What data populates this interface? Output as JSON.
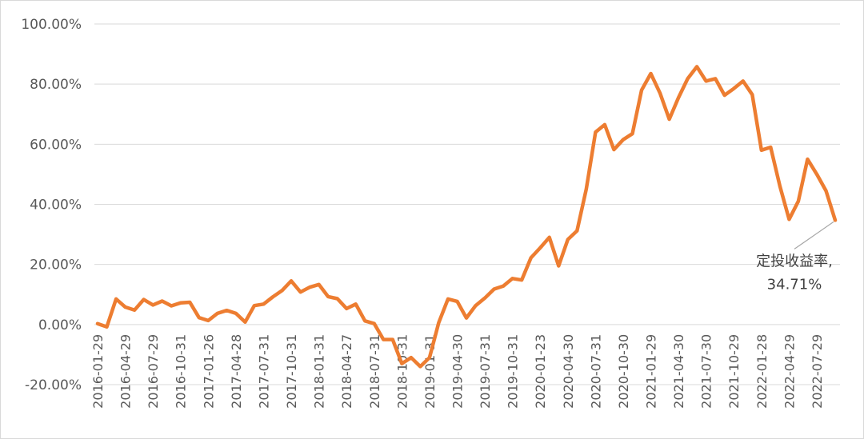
{
  "chart_data": {
    "type": "line",
    "title": "",
    "xlabel": "",
    "ylabel": "",
    "ylim": [
      -0.2,
      1.0
    ],
    "y_tick_labels": [
      "100.00%",
      "80.00%",
      "60.00%",
      "40.00%",
      "20.00%",
      "0.00%",
      "-20.00%"
    ],
    "x_tick_labels": [
      "2016-01-29",
      "2016-04-29",
      "2016-07-29",
      "2016-10-31",
      "2017-01-26",
      "2017-04-28",
      "2017-07-31",
      "2017-10-31",
      "2018-01-31",
      "2018-04-27",
      "2018-07-31",
      "2018-10-31",
      "2019-01-31",
      "2019-04-30",
      "2019-07-31",
      "2019-10-31",
      "2020-01-23",
      "2020-04-30",
      "2020-07-31",
      "2020-10-30",
      "2021-01-29",
      "2021-04-30",
      "2021-07-30",
      "2021-10-29",
      "2022-01-28",
      "2022-04-29",
      "2022-07-29"
    ],
    "grid": true,
    "legend": "none",
    "series": [
      {
        "color": "#ED7D31",
        "values": [
          0.003,
          -0.008,
          0.085,
          0.058,
          0.048,
          0.083,
          0.065,
          0.078,
          0.062,
          0.072,
          0.074,
          0.023,
          0.013,
          0.037,
          0.047,
          0.037,
          0.008,
          0.063,
          0.068,
          0.092,
          0.113,
          0.145,
          0.108,
          0.124,
          0.133,
          0.093,
          0.086,
          0.053,
          0.068,
          0.012,
          0.003,
          -0.05,
          -0.05,
          -0.13,
          -0.11,
          -0.14,
          -0.11,
          0.006,
          0.085,
          0.077,
          0.022,
          0.063,
          0.088,
          0.118,
          0.128,
          0.153,
          0.148,
          0.222,
          0.255,
          0.29,
          0.195,
          0.283,
          0.312,
          0.45,
          0.64,
          0.665,
          0.582,
          0.615,
          0.635,
          0.78,
          0.835,
          0.77,
          0.683,
          0.755,
          0.818,
          0.858,
          0.81,
          0.818,
          0.763,
          0.785,
          0.81,
          0.765,
          0.58,
          0.59,
          0.46,
          0.35,
          0.41,
          0.55,
          0.5,
          0.445,
          0.3471
        ]
      }
    ],
    "annotation": {
      "line1": "定投收益率,",
      "line2": "34.71%"
    }
  }
}
